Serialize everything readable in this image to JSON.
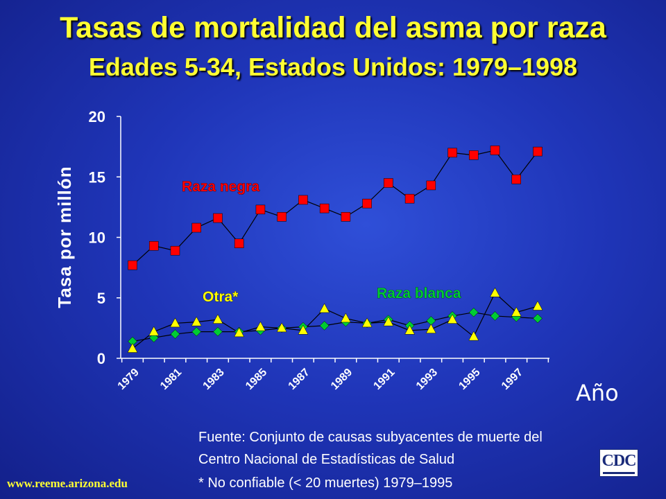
{
  "title": "Tasas de mortalidad del asma por raza",
  "subtitle": "Edades 5-34, Estados Unidos: 1979–1998",
  "source_line1": "Fuente: Conjunto de causas subyacentes de muerte del",
  "source_line2": "Centro Nacional de Estadísticas de Salud",
  "footnote": "* No confiable (< 20 muertes) 1979–1995",
  "website": "www.reeme.arizona.edu",
  "logo_text": "CDC",
  "colors": {
    "axis": "#ffffff",
    "raza_negra": "#ff0000",
    "raza_blanca": "#00cc33",
    "otra": "#ffff00",
    "axis_text": "#ffffff"
  },
  "chart_data": {
    "type": "line",
    "title": "Tasas de mortalidad del asma por raza",
    "subtitle": "Edades 5-34, Estados Unidos: 1979–1998",
    "xlabel": "Año",
    "ylabel": "Tasa por millón",
    "ylim": [
      0,
      20
    ],
    "yticks": [
      0,
      5,
      10,
      15,
      20
    ],
    "x": [
      1979,
      1980,
      1981,
      1982,
      1983,
      1984,
      1985,
      1986,
      1987,
      1988,
      1989,
      1990,
      1991,
      1992,
      1993,
      1994,
      1995,
      1996,
      1997,
      1998
    ],
    "xtick_labels": [
      "1979",
      "1981",
      "1983",
      "1985",
      "1987",
      "1989",
      "1991",
      "1993",
      "1995",
      "1997"
    ],
    "grid": false,
    "legend": "inline labels",
    "series": [
      {
        "name": "Raza negra",
        "marker": "square",
        "color": "#ff0000",
        "values": [
          7.7,
          9.3,
          8.9,
          10.8,
          11.6,
          9.5,
          12.3,
          11.7,
          13.1,
          12.4,
          11.7,
          12.8,
          14.5,
          13.2,
          14.3,
          17.0,
          16.8,
          17.2,
          14.8,
          17.1
        ]
      },
      {
        "name": "Raza blanca",
        "marker": "diamond",
        "color": "#00cc33",
        "values": [
          1.4,
          1.7,
          2.0,
          2.2,
          2.2,
          2.2,
          2.3,
          2.5,
          2.6,
          2.7,
          3.0,
          2.9,
          3.2,
          2.7,
          3.1,
          3.5,
          3.8,
          3.5,
          3.4,
          3.3
        ]
      },
      {
        "name": "Otra*",
        "marker": "triangle",
        "color": "#ffff00",
        "values": [
          0.8,
          2.2,
          2.9,
          3.0,
          3.2,
          2.1,
          2.6,
          2.5,
          2.3,
          4.1,
          3.3,
          2.9,
          3.0,
          2.3,
          2.4,
          3.2,
          1.8,
          5.4,
          3.8,
          4.3
        ]
      }
    ]
  }
}
